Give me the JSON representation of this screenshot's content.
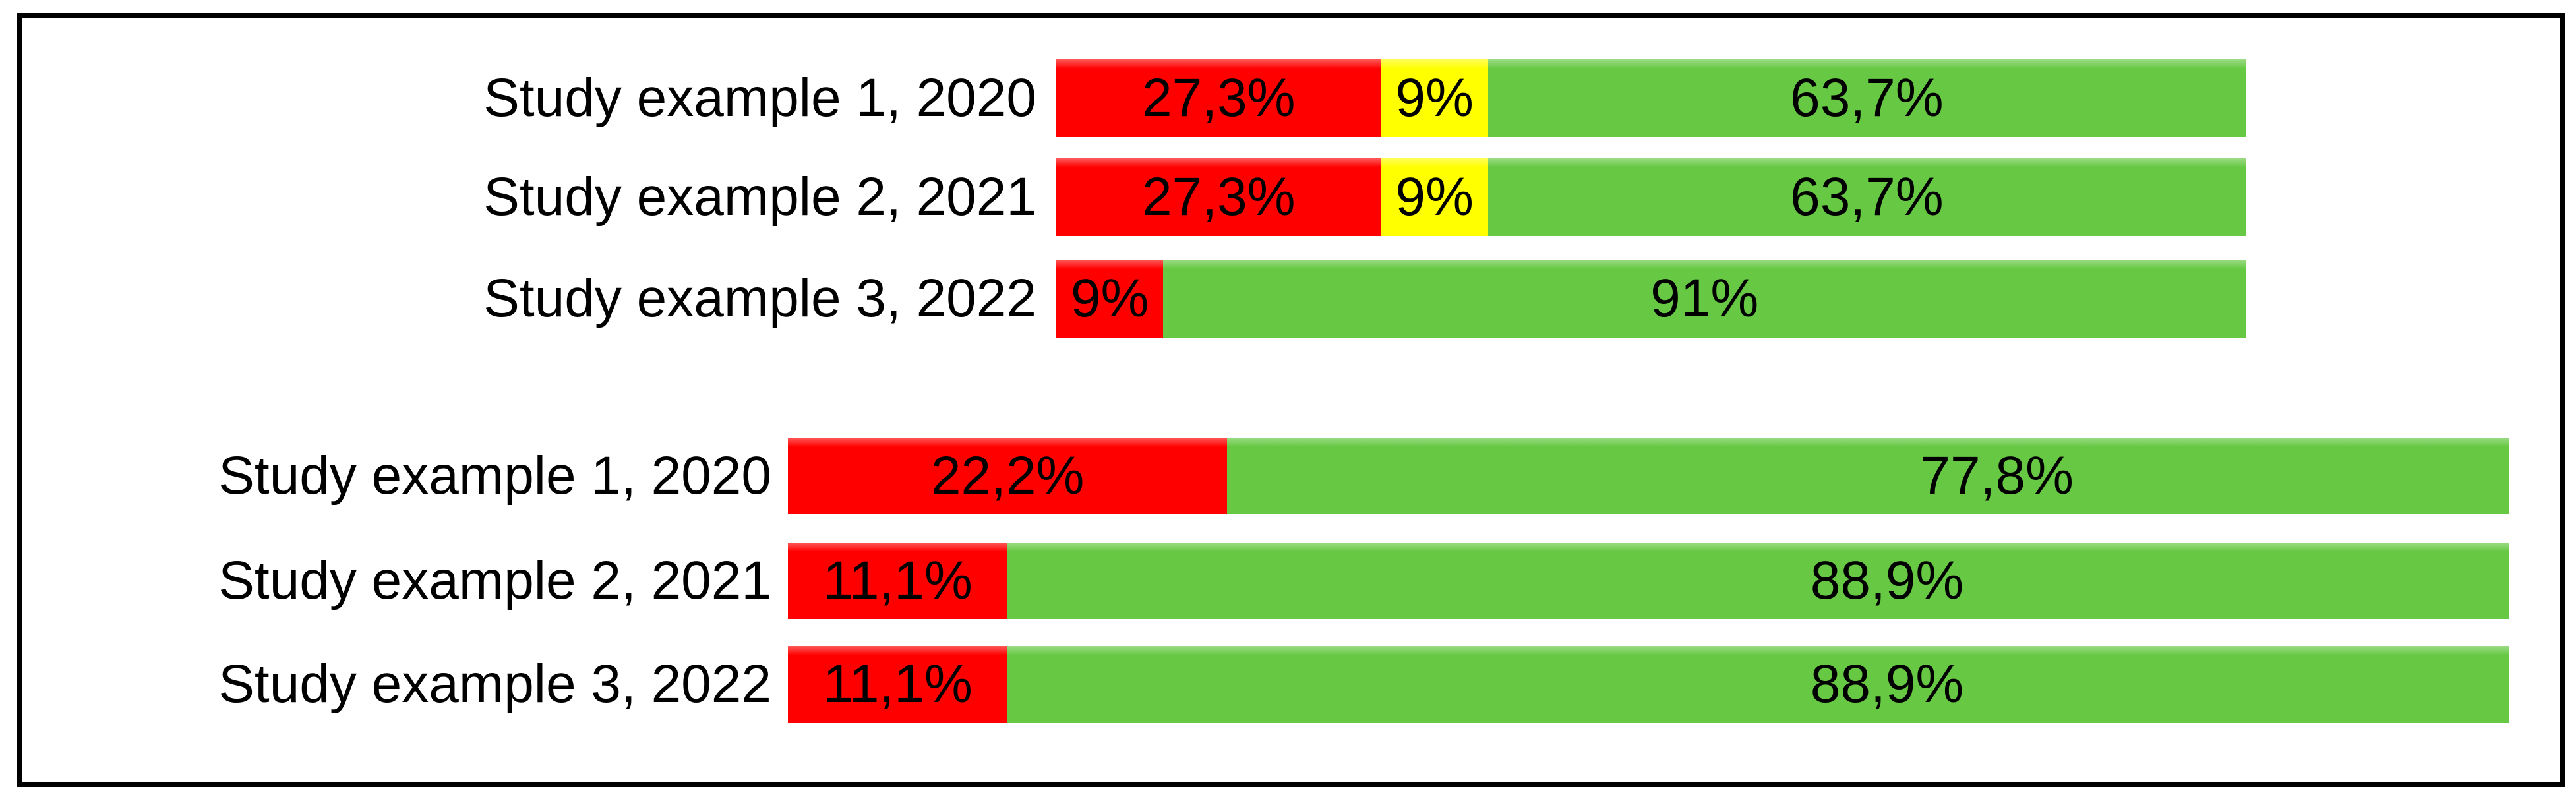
{
  "palette": {
    "red": "#FF0000",
    "yellow": "#FFFF00",
    "green": "#66C843",
    "text": "#000000",
    "frame": "#000000",
    "background": "#FFFFFF"
  },
  "chart_data": [
    {
      "type": "bar",
      "orientation": "horizontal",
      "stacked": true,
      "value_unit": "percent",
      "decimal_style": "comma",
      "title": "",
      "xlabel": "",
      "ylabel": "",
      "axis_visible": false,
      "legend": "none",
      "series_names": [
        "red",
        "yellow",
        "green"
      ],
      "rows": [
        {
          "category": "Study example 1, 2020",
          "segments": [
            {
              "series": "red",
              "value": 27.3,
              "label": "27,3%"
            },
            {
              "series": "yellow",
              "value": 9,
              "label": "9%"
            },
            {
              "series": "green",
              "value": 63.7,
              "label": "63,7%"
            }
          ]
        },
        {
          "category": "Study example 2, 2021",
          "segments": [
            {
              "series": "red",
              "value": 27.3,
              "label": "27,3%"
            },
            {
              "series": "yellow",
              "value": 9,
              "label": "9%"
            },
            {
              "series": "green",
              "value": 63.7,
              "label": "63,7%"
            }
          ]
        },
        {
          "category": "Study example 3, 2022",
          "segments": [
            {
              "series": "red",
              "value": 9,
              "label": "9%"
            },
            {
              "series": "green",
              "value": 91,
              "label": "91%"
            }
          ]
        }
      ]
    },
    {
      "type": "bar",
      "orientation": "horizontal",
      "stacked": true,
      "value_unit": "percent",
      "decimal_style": "comma",
      "title": "",
      "xlabel": "",
      "ylabel": "",
      "axis_visible": false,
      "legend": "none",
      "series_names": [
        "red",
        "green"
      ],
      "rows": [
        {
          "category": "Study example 1, 2020",
          "segments": [
            {
              "series": "red",
              "value": 22.2,
              "label": "22,2%"
            },
            {
              "series": "green",
              "value": 77.8,
              "label": "77,8%"
            }
          ]
        },
        {
          "category": "Study example 2, 2021",
          "segments": [
            {
              "series": "red",
              "value": 11.1,
              "label": "11,1%"
            },
            {
              "series": "green",
              "value": 88.9,
              "label": "88,9%"
            }
          ]
        },
        {
          "category": "Study example 3, 2022",
          "segments": [
            {
              "series": "red",
              "value": 11.1,
              "label": "11,1%"
            },
            {
              "series": "green",
              "value": 88.9,
              "label": "88,9%"
            }
          ]
        }
      ]
    }
  ]
}
